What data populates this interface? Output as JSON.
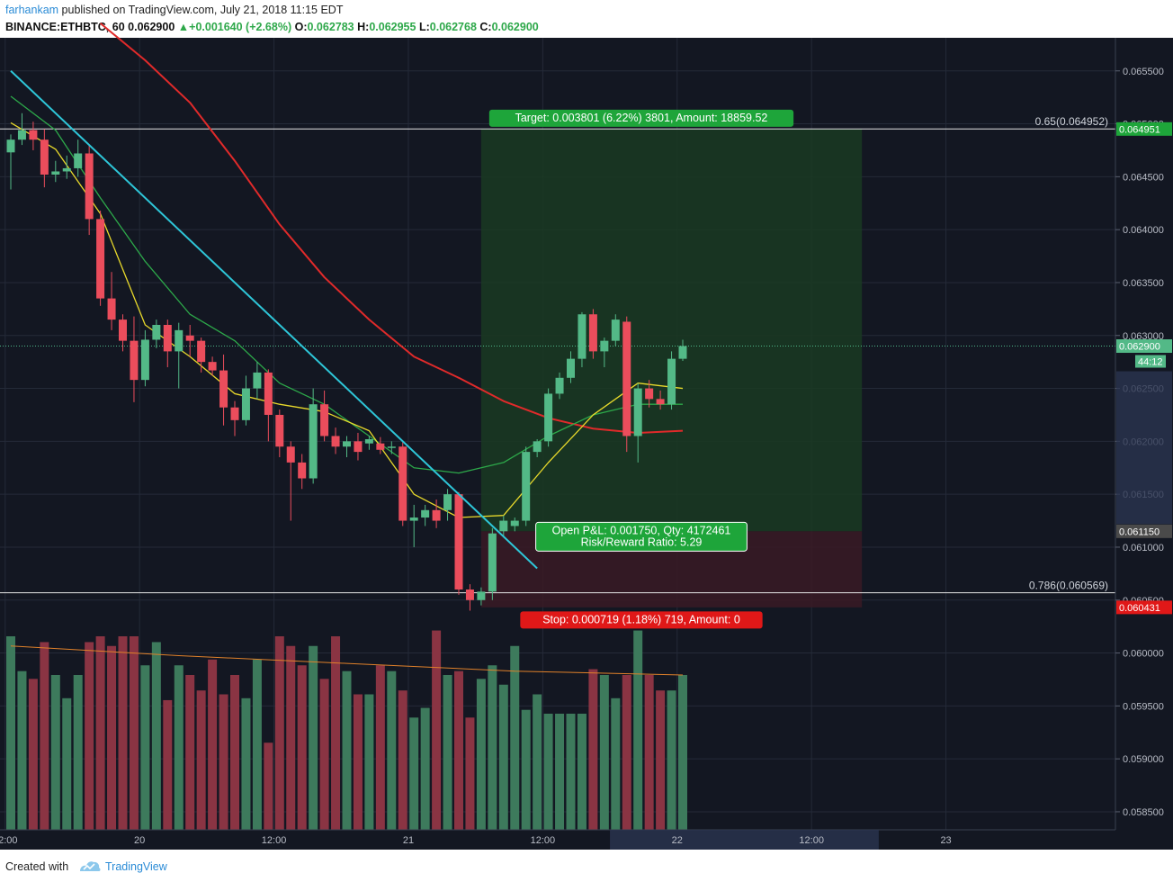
{
  "header": {
    "author": "farhankam",
    "published": "published on TradingView.com, July 21, 2018 11:15 EDT",
    "symbol": "BINANCE:ETHBTC, 60",
    "last": "0.062900",
    "change": "+0.001640 (+2.68%)",
    "o_label": "O:",
    "o_value": "0.062783",
    "h_label": "H:",
    "h_value": "0.062955",
    "l_label": "L:",
    "l_value": "0.062768",
    "c_label": "C:",
    "c_value": "0.062900"
  },
  "footer": {
    "created": "Created with",
    "brand": "TradingView"
  },
  "colors": {
    "background": "#131722",
    "up": "#53b987",
    "down": "#eb4d5c",
    "vol_up": "#3d7a5c",
    "vol_down": "#8a3443",
    "trendline": "#2ec6d8",
    "ema_yellow": "#e8d92b",
    "ema_green": "#2da94a",
    "ema_red": "#e02a2a",
    "vol_ma": "#e0812a",
    "target_zone": "#1a3a22",
    "stop_zone": "#3a1a24"
  },
  "chart_data": {
    "type": "candlestick",
    "symbol": "BINANCE:ETHBTC",
    "timeframe": "60",
    "price_range": [
      0.0582,
      0.0659
    ],
    "y_ticks": [
      "0.065500",
      "0.065000",
      "0.064500",
      "0.064000",
      "0.063500",
      "0.063000",
      "0.062500",
      "0.062000",
      "0.061500",
      "0.061000",
      "0.060500",
      "0.060000",
      "0.059500",
      "0.059000",
      "0.058500"
    ],
    "x_ticks": [
      {
        "label": "12:00",
        "bar": -0.5
      },
      {
        "label": "20",
        "bar": 11.5
      },
      {
        "label": "12:00",
        "bar": 23.5
      },
      {
        "label": "21",
        "bar": 35.5
      },
      {
        "label": "12:00",
        "bar": 47.5
      },
      {
        "label": "22",
        "bar": 59.5
      },
      {
        "label": "12:00",
        "bar": 71.5
      },
      {
        "label": "23",
        "bar": 83.5
      }
    ],
    "candles": [
      [
        0.06473,
        0.06485,
        0.06438,
        0.0649
      ],
      [
        0.06485,
        0.06494,
        0.0648,
        0.0651
      ],
      [
        0.06494,
        0.06485,
        0.06475,
        0.06502
      ],
      [
        0.06485,
        0.06452,
        0.0644,
        0.06495
      ],
      [
        0.06452,
        0.06455,
        0.06445,
        0.06465
      ],
      [
        0.06455,
        0.06458,
        0.06448,
        0.0647
      ],
      [
        0.06458,
        0.06472,
        0.0645,
        0.06485
      ],
      [
        0.06472,
        0.0641,
        0.06395,
        0.0648
      ],
      [
        0.0641,
        0.06335,
        0.06328,
        0.06418
      ],
      [
        0.06335,
        0.06315,
        0.06305,
        0.0636
      ],
      [
        0.06315,
        0.06295,
        0.06285,
        0.0632
      ],
      [
        0.06295,
        0.06258,
        0.06237,
        0.06318
      ],
      [
        0.06258,
        0.06296,
        0.06252,
        0.06305
      ],
      [
        0.06296,
        0.0631,
        0.06288,
        0.06315
      ],
      [
        0.0631,
        0.06285,
        0.0627,
        0.06315
      ],
      [
        0.06285,
        0.06305,
        0.0625,
        0.06312
      ],
      [
        0.063,
        0.06295,
        0.0628,
        0.0631
      ],
      [
        0.06295,
        0.06275,
        0.06265,
        0.06298
      ],
      [
        0.06275,
        0.06267,
        0.06262,
        0.0628
      ],
      [
        0.06267,
        0.06232,
        0.06215,
        0.06282
      ],
      [
        0.06232,
        0.0622,
        0.06205,
        0.06238
      ],
      [
        0.0622,
        0.0625,
        0.06215,
        0.06262
      ],
      [
        0.0625,
        0.06265,
        0.0624,
        0.06275
      ],
      [
        0.06265,
        0.06225,
        0.062,
        0.06268
      ],
      [
        0.06225,
        0.06195,
        0.06185,
        0.0623
      ],
      [
        0.06195,
        0.0618,
        0.06125,
        0.062
      ],
      [
        0.0618,
        0.06165,
        0.06155,
        0.06188
      ],
      [
        0.06165,
        0.06235,
        0.0616,
        0.0625
      ],
      [
        0.06235,
        0.06205,
        0.062,
        0.06248
      ],
      [
        0.06205,
        0.06195,
        0.06188,
        0.06213
      ],
      [
        0.06195,
        0.062,
        0.06185,
        0.06205
      ],
      [
        0.062,
        0.0619,
        0.06182,
        0.06208
      ],
      [
        0.06198,
        0.06202,
        0.06192,
        0.06205
      ],
      [
        0.06198,
        0.06192,
        0.06188,
        0.06204
      ],
      [
        0.06195,
        0.06195,
        0.06188,
        0.062
      ],
      [
        0.06195,
        0.06125,
        0.0612,
        0.062
      ],
      [
        0.06125,
        0.06128,
        0.061,
        0.0614
      ],
      [
        0.06128,
        0.06135,
        0.0612,
        0.0614
      ],
      [
        0.06135,
        0.06125,
        0.06118,
        0.06145
      ],
      [
        0.06135,
        0.0615,
        0.06125,
        0.06155
      ],
      [
        0.0615,
        0.0606,
        0.06055,
        0.06152
      ],
      [
        0.0606,
        0.0605,
        0.0604,
        0.06065
      ],
      [
        0.0605,
        0.06058,
        0.06045,
        0.06062
      ],
      [
        0.06058,
        0.06113,
        0.0605,
        0.06118
      ],
      [
        0.06115,
        0.06125,
        0.0611,
        0.0613
      ],
      [
        0.0612,
        0.06125,
        0.06115,
        0.06128
      ],
      [
        0.06125,
        0.0619,
        0.0612,
        0.06195
      ],
      [
        0.0619,
        0.062,
        0.06185,
        0.06202
      ],
      [
        0.062,
        0.06245,
        0.06195,
        0.0625
      ],
      [
        0.06245,
        0.0626,
        0.0624,
        0.06265
      ],
      [
        0.0626,
        0.06278,
        0.06255,
        0.06285
      ],
      [
        0.06278,
        0.0632,
        0.0627,
        0.06322
      ],
      [
        0.0632,
        0.06285,
        0.06278,
        0.06325
      ],
      [
        0.06285,
        0.06295,
        0.0627,
        0.06298
      ],
      [
        0.06295,
        0.06315,
        0.0629,
        0.0632
      ],
      [
        0.06313,
        0.06205,
        0.0619,
        0.06318
      ],
      [
        0.06205,
        0.0625,
        0.0618,
        0.06255
      ],
      [
        0.0625,
        0.0624,
        0.06232,
        0.06258
      ],
      [
        0.0624,
        0.06235,
        0.0623,
        0.06248
      ],
      [
        0.06235,
        0.06278,
        0.0623,
        0.06285
      ],
      [
        0.06278,
        0.0629,
        0.06276,
        0.06296
      ]
    ],
    "volume": [
      100,
      82,
      78,
      97,
      80,
      68,
      80,
      97,
      100,
      95,
      100,
      100,
      85,
      97,
      67,
      85,
      80,
      72,
      88,
      70,
      80,
      68,
      88,
      45,
      100,
      95,
      85,
      95,
      78,
      100,
      82,
      70,
      70,
      85,
      82,
      72,
      58,
      63,
      103,
      80,
      82,
      58,
      78,
      85,
      75,
      95,
      62,
      70,
      60,
      60,
      60,
      60,
      83,
      80,
      68,
      80,
      103,
      80,
      72,
      72,
      80
    ],
    "volume_ma_curve": [
      [
        0,
        95
      ],
      [
        15,
        90
      ],
      [
        30,
        86
      ],
      [
        45,
        82
      ],
      [
        60,
        80
      ]
    ],
    "volume_ma_label": "",
    "ema_yellow": [
      [
        0,
        0.06501
      ],
      [
        4,
        0.06476
      ],
      [
        8,
        0.06415
      ],
      [
        12,
        0.0631
      ],
      [
        16,
        0.0628
      ],
      [
        20,
        0.06245
      ],
      [
        24,
        0.06235
      ],
      [
        28,
        0.06228
      ],
      [
        32,
        0.0621
      ],
      [
        36,
        0.0615
      ],
      [
        40,
        0.06128
      ],
      [
        44,
        0.0613
      ],
      [
        48,
        0.0618
      ],
      [
        52,
        0.06225
      ],
      [
        56,
        0.06255
      ],
      [
        60,
        0.0625
      ]
    ],
    "ema_green": [
      [
        0,
        0.06526
      ],
      [
        4,
        0.06494
      ],
      [
        8,
        0.0643
      ],
      [
        12,
        0.0637
      ],
      [
        16,
        0.0632
      ],
      [
        20,
        0.06295
      ],
      [
        24,
        0.06255
      ],
      [
        28,
        0.06235
      ],
      [
        32,
        0.06205
      ],
      [
        36,
        0.06175
      ],
      [
        40,
        0.0617
      ],
      [
        44,
        0.0618
      ],
      [
        48,
        0.06205
      ],
      [
        52,
        0.06225
      ],
      [
        56,
        0.06235
      ],
      [
        60,
        0.06235
      ]
    ],
    "ema_red": [
      [
        8,
        0.06595
      ],
      [
        12,
        0.0656
      ],
      [
        16,
        0.0652
      ],
      [
        20,
        0.06465
      ],
      [
        24,
        0.06405
      ],
      [
        28,
        0.06355
      ],
      [
        32,
        0.06315
      ],
      [
        36,
        0.0628
      ],
      [
        40,
        0.0626
      ],
      [
        44,
        0.06238
      ],
      [
        48,
        0.06222
      ],
      [
        52,
        0.06212
      ],
      [
        56,
        0.06208
      ],
      [
        60,
        0.0621
      ]
    ],
    "trendline": {
      "from": [
        0,
        0.0655
      ],
      "to": [
        47,
        0.0608
      ]
    },
    "current_price": 0.0629,
    "current_price_label": "0.062900",
    "countdown_label": "44:12",
    "entry_price": 0.06115,
    "entry_label": "0.061150",
    "target_price": 0.064951,
    "target_label": "0.064951",
    "stop_price": 0.060431,
    "stop_label": "0.060431",
    "fib_levels": [
      {
        "price": 0.064952,
        "label": "0.65(0.064952)"
      },
      {
        "price": 0.060569,
        "label": "0.786(0.060569)"
      }
    ],
    "position_zone": {
      "start_bar": 42,
      "end_bar": 76
    },
    "target_text": "Target: 0.003801 (6.22%) 3801, Amount: 18859.52",
    "pnl_text_1": "Open P&L: 0.001750, Qty: 4172461",
    "pnl_text_2": "Risk/Reward Ratio: 5.29",
    "stop_text": "Stop: 0.000719 (1.18%) 719, Amount: 0"
  }
}
